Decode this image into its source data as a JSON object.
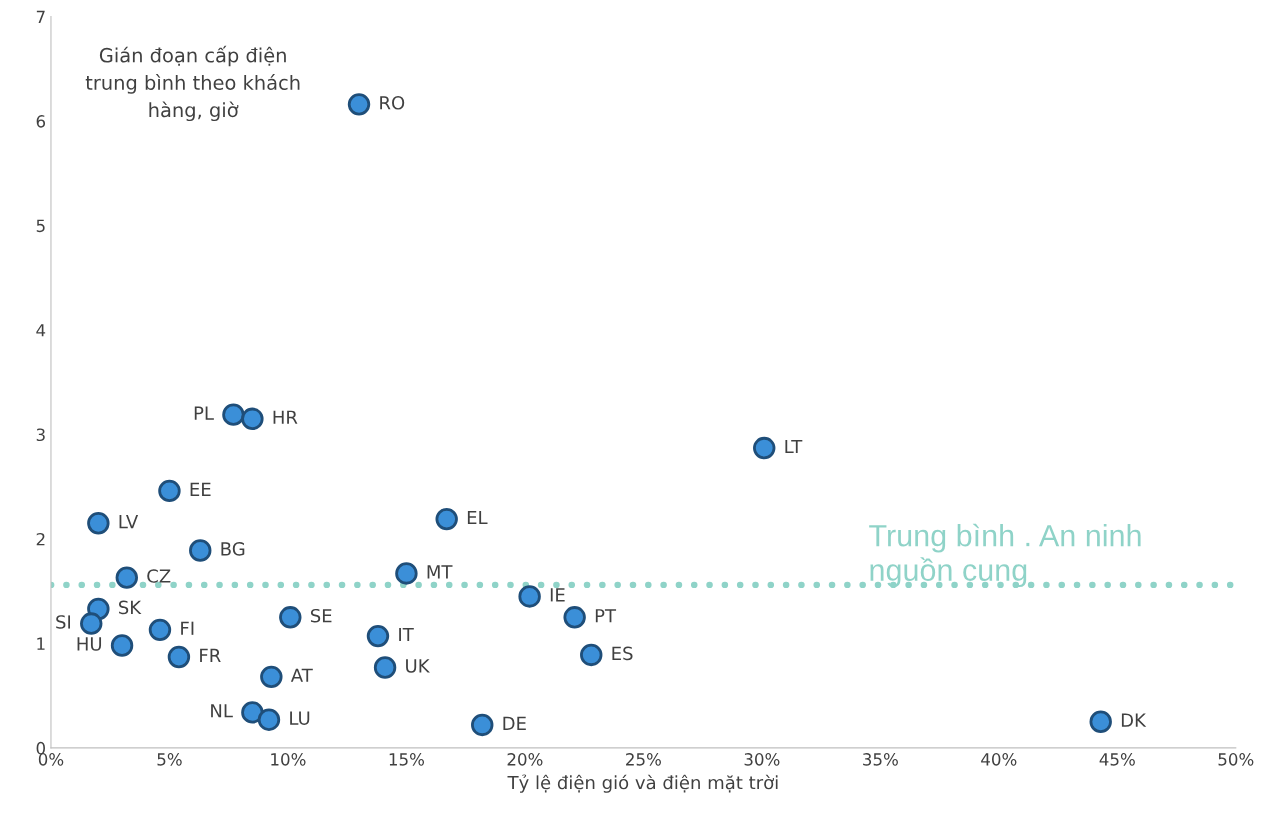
{
  "chart_data": {
    "type": "scatter",
    "xlabel": "Tỷ lệ điện gió và điện mặt trời",
    "ylabel": "Gián đoạn cấp điện trung bình theo khách hàng, giờ",
    "x": [
      13.0,
      7.7,
      8.5,
      30.1,
      5.0,
      2.0,
      16.7,
      6.3,
      3.2,
      15.0,
      20.2,
      2.0,
      1.7,
      4.6,
      3.0,
      5.4,
      10.1,
      13.8,
      22.1,
      22.8,
      14.1,
      9.3,
      8.5,
      9.2,
      18.2,
      44.3
    ],
    "series": [
      {
        "color": "#3b8fd8",
        "values": [
          6.16,
          3.19,
          3.15,
          2.87,
          2.46,
          2.15,
          2.19,
          1.89,
          1.63,
          1.67,
          1.45,
          1.33,
          1.19,
          1.13,
          0.98,
          0.87,
          1.25,
          1.07,
          1.25,
          0.89,
          0.77,
          0.68,
          0.34,
          0.27,
          0.22,
          0.25
        ]
      }
    ],
    "annotations": [
      {
        "text": "RO",
        "x": 13.0,
        "y": 6.16
      },
      {
        "text": "PL",
        "x": 7.7,
        "y": 3.19
      },
      {
        "text": "HR",
        "x": 8.5,
        "y": 3.15
      },
      {
        "text": "LT",
        "x": 30.1,
        "y": 2.87
      },
      {
        "text": "EE",
        "x": 5.0,
        "y": 2.46
      },
      {
        "text": "LV",
        "x": 2.0,
        "y": 2.15
      },
      {
        "text": "EL",
        "x": 16.7,
        "y": 2.19
      },
      {
        "text": "BG",
        "x": 6.3,
        "y": 1.89
      },
      {
        "text": "CZ",
        "x": 3.2,
        "y": 1.63
      },
      {
        "text": "MT",
        "x": 15.0,
        "y": 1.67
      },
      {
        "text": "IE",
        "x": 20.2,
        "y": 1.45
      },
      {
        "text": "SK",
        "x": 2.0,
        "y": 1.33
      },
      {
        "text": "SI",
        "x": 1.7,
        "y": 1.19
      },
      {
        "text": "FI",
        "x": 4.6,
        "y": 1.13
      },
      {
        "text": "HU",
        "x": 3.0,
        "y": 0.98
      },
      {
        "text": "FR",
        "x": 5.4,
        "y": 0.87
      },
      {
        "text": "SE",
        "x": 10.1,
        "y": 1.25
      },
      {
        "text": "IT",
        "x": 13.8,
        "y": 1.07
      },
      {
        "text": "PT",
        "x": 22.1,
        "y": 1.25
      },
      {
        "text": "ES",
        "x": 22.8,
        "y": 0.89
      },
      {
        "text": "UK",
        "x": 14.1,
        "y": 0.77
      },
      {
        "text": "AT",
        "x": 9.3,
        "y": 0.68
      },
      {
        "text": "NL",
        "x": 8.5,
        "y": 0.34
      },
      {
        "text": "LU",
        "x": 9.2,
        "y": 0.27
      },
      {
        "text": "DE",
        "x": 18.2,
        "y": 0.22
      },
      {
        "text": "DK",
        "x": 44.3,
        "y": 0.25
      }
    ],
    "ref_lines": [
      {
        "axis": "y",
        "value": 1.56,
        "label": "Trung bình . An ninh nguồn cung",
        "color": "#8fd3c8",
        "line_style": "dotted"
      }
    ],
    "xlim": [
      0,
      50
    ],
    "ylim": [
      0,
      7
    ],
    "xticks": [
      {
        "value": 0,
        "label": "0%"
      },
      {
        "value": 5,
        "label": "5%"
      },
      {
        "value": 10,
        "label": "10%"
      },
      {
        "value": 15,
        "label": "15%"
      },
      {
        "value": 20,
        "label": "20%"
      },
      {
        "value": 25,
        "label": "25%"
      },
      {
        "value": 30,
        "label": "30%"
      },
      {
        "value": 35,
        "label": "35%"
      },
      {
        "value": 40,
        "label": "40%"
      },
      {
        "value": 45,
        "label": "45%"
      },
      {
        "value": 50,
        "label": "50%"
      }
    ],
    "yticks": [
      0,
      1,
      2,
      3,
      4,
      5,
      6,
      7
    ],
    "marker": "circle",
    "grid": false
  }
}
